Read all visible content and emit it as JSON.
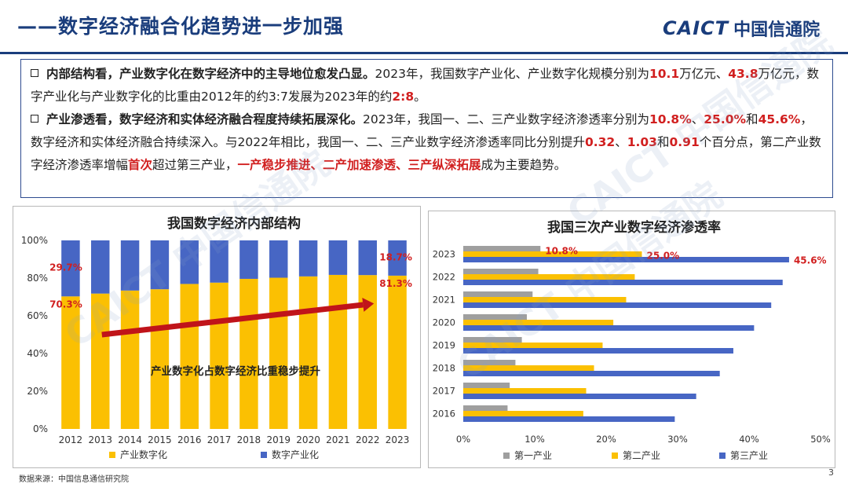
{
  "header": {
    "title": "——数字经济融合化趋势进一步加强",
    "logo_en": "CAICT",
    "logo_cn": "中国信通院"
  },
  "bullets": [
    {
      "lead": "内部结构看，产业数字化在数字经济中的主导地位愈发凸显。",
      "t1": "2023年，我国数字产业化、产业数字化规模分别为",
      "v1": "10.1",
      "t2": "万亿元、",
      "v2": "43.8",
      "t3": "万亿元，数字产业化与产业数字化的比重由2012年的约3:7发展为2023年的约",
      "v3": "2:8",
      "t4": "。"
    },
    {
      "lead": "产业渗透看，数字经济和实体经济融合程度持续拓展深化。",
      "t1": "2023年，我国一、二、三产业数字经济渗透率分别为",
      "v1": "10.8%",
      "t2": "、",
      "v2": "25.0%",
      "t3": "和",
      "v3": "45.6%",
      "t4": "，数字经济和实体经济融合持续深入。与2022年相比，我国一、二、三产业数字经济渗透率同比分别提升",
      "v4": "0.32",
      "t5": "、",
      "v5": "1.03",
      "t6": "和",
      "v6": "0.91",
      "t7": "个百分点，第二产业数字经济渗透率增幅",
      "v7": "首次",
      "t8": "超过第三产业，",
      "v8": "一产稳步推进、二产加速渗透、三产纵深拓展",
      "t9": "成为主要趋势。"
    }
  ],
  "colors": {
    "yellow": "#fbc002",
    "blue": "#4766c4",
    "gray": "#9f9f9f",
    "red": "#d11f1f",
    "arrow": "#c0141a",
    "navy": "#1a3d7c"
  },
  "chart_data": [
    {
      "type": "bar",
      "stacked": true,
      "percent": true,
      "title": "我国数字经济内部结构",
      "categories": [
        "2012",
        "2013",
        "2014",
        "2015",
        "2016",
        "2017",
        "2018",
        "2019",
        "2020",
        "2021",
        "2022",
        "2023"
      ],
      "series": [
        {
          "name": "产业数字化",
          "color": "#fbc002",
          "values": [
            70.3,
            71.8,
            73.4,
            74.1,
            76.9,
            77.6,
            79.6,
            80.2,
            80.9,
            81.7,
            81.6,
            81.3
          ]
        },
        {
          "name": "数字产业化",
          "color": "#4766c4",
          "values": [
            29.7,
            28.2,
            26.6,
            25.9,
            23.1,
            22.4,
            20.4,
            19.8,
            19.1,
            18.3,
            18.4,
            18.7
          ]
        }
      ],
      "data_labels": [
        {
          "series": 1,
          "index": 0,
          "text": "29.7%"
        },
        {
          "series": 0,
          "index": 0,
          "text": "70.3%"
        },
        {
          "series": 1,
          "index": 11,
          "text": "18.7%"
        },
        {
          "series": 0,
          "index": 11,
          "text": "81.3%"
        }
      ],
      "annotation": "产业数字化占数字经济比重稳步提升",
      "ylim": [
        0,
        100
      ],
      "yticks": [
        "0%",
        "20%",
        "40%",
        "60%",
        "80%",
        "100%"
      ],
      "legend": "bottom"
    },
    {
      "type": "bar",
      "orientation": "horizontal",
      "title": "我国三次产业数字经济渗透率",
      "categories": [
        "2023",
        "2022",
        "2021",
        "2020",
        "2019",
        "2018",
        "2017",
        "2016"
      ],
      "series": [
        {
          "name": "第一产业",
          "color": "#9f9f9f",
          "values": [
            10.8,
            10.5,
            9.7,
            8.9,
            8.2,
            7.3,
            6.5,
            6.2
          ]
        },
        {
          "name": "第二产业",
          "color": "#fbc002",
          "values": [
            25.0,
            24.0,
            22.8,
            21.0,
            19.5,
            18.3,
            17.2,
            16.8
          ]
        },
        {
          "name": "第三产业",
          "color": "#4766c4",
          "values": [
            45.6,
            44.7,
            43.1,
            40.7,
            37.8,
            35.9,
            32.6,
            29.6
          ]
        }
      ],
      "data_labels": [
        {
          "series": 0,
          "index": 0,
          "text": "10.8%"
        },
        {
          "series": 1,
          "index": 0,
          "text": "25.0%"
        },
        {
          "series": 2,
          "index": 0,
          "text": "45.6%"
        }
      ],
      "xlim": [
        0,
        50
      ],
      "xticks": [
        "0%",
        "10%",
        "20%",
        "30%",
        "40%",
        "50%"
      ],
      "legend": "bottom"
    }
  ],
  "footer": {
    "source": "数据来源：中国信息通信研究院",
    "page": "3"
  },
  "watermark": {
    "text": "CAICT 中国信通院"
  }
}
